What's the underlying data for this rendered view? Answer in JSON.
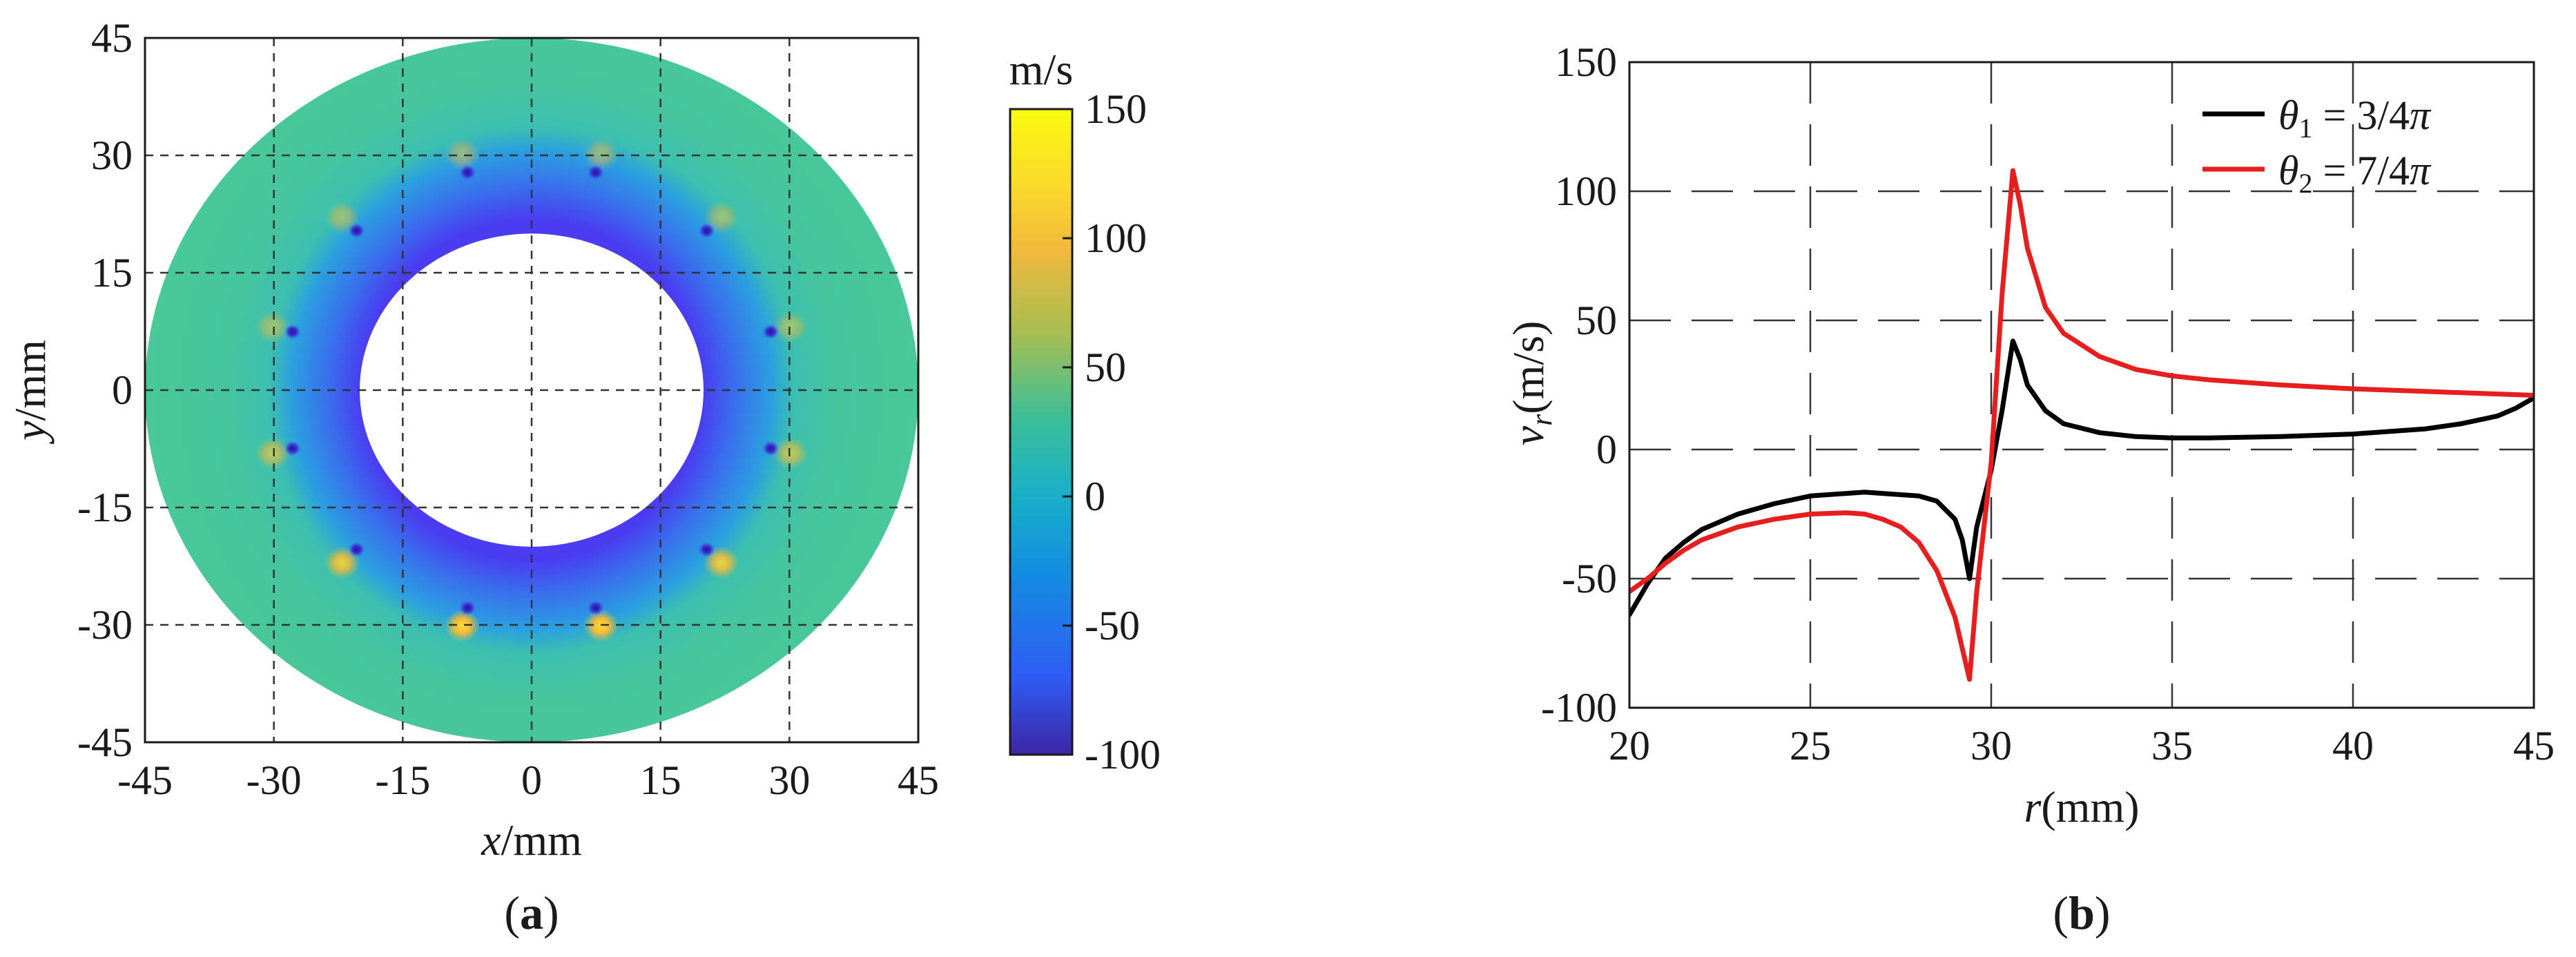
{
  "figure": {
    "panel_a_label": "(a)",
    "panel_b_label": "(b)"
  },
  "chart_data": [
    {
      "type": "heatmap",
      "panel": "a",
      "xlabel": "x/mm",
      "ylabel": "y/mm",
      "xlim": [
        -45,
        45
      ],
      "ylim": [
        -45,
        45
      ],
      "xticks": [
        "-45",
        "-30",
        "-15",
        "0",
        "15",
        "30",
        "45"
      ],
      "yticks": [
        "-45",
        "-30",
        "-15",
        "0",
        "15",
        "30",
        "45"
      ],
      "grid": true,
      "colorbar": {
        "unit": "m/s",
        "range": [
          -100,
          150
        ],
        "ticks": [
          "150",
          "100",
          "50",
          "0",
          "-50",
          "-100"
        ],
        "colormap": [
          "#3e26a8",
          "#2f5cf3",
          "#138de1",
          "#19afc9",
          "#3abe99",
          "#a4be52",
          "#f0b93c",
          "#fbd92b",
          "#f9fb0e"
        ]
      },
      "annulus": {
        "inner_radius": 20,
        "outer_radius": 45,
        "magnet_ring_radius": 30
      },
      "hotspot_angles_deg": [
        15,
        45,
        75,
        105,
        135,
        165,
        195,
        225,
        255,
        285,
        315,
        345
      ],
      "field_colors": {
        "outer": "#49c79a",
        "inner": "#3a58ec",
        "hot": "#f6c531",
        "cold": "#2b1e9a"
      }
    },
    {
      "type": "line",
      "panel": "b",
      "xlabel": "r(mm)",
      "ylabel": "v_r (m/s)",
      "xlim": [
        20,
        45
      ],
      "ylim": [
        -100,
        150
      ],
      "xticks": [
        "20",
        "25",
        "30",
        "35",
        "40",
        "45"
      ],
      "yticks": [
        "150",
        "100",
        "50",
        "0",
        "-50",
        "-100"
      ],
      "grid": true,
      "legend_position": "top-right",
      "series": [
        {
          "name": "θ1 = 3/4π",
          "color": "#000000",
          "x": [
            20,
            20.5,
            21,
            21.5,
            22,
            23,
            24,
            25,
            26,
            26.5,
            27,
            28,
            28.5,
            29,
            29.2,
            29.4,
            29.6,
            30,
            30.3,
            30.6,
            30.8,
            31,
            31.5,
            32,
            33,
            34,
            35,
            36,
            38,
            40,
            42,
            43,
            44,
            44.5,
            45
          ],
          "y": [
            -64,
            -52,
            -42,
            -36,
            -31,
            -25,
            -21,
            -18,
            -17,
            -16.5,
            -17,
            -18,
            -20,
            -27,
            -35,
            -50,
            -30,
            -8,
            15,
            42,
            35,
            25,
            15,
            10,
            6.5,
            5,
            4.5,
            4.5,
            5,
            6,
            8,
            10,
            13,
            16,
            20
          ]
        },
        {
          "name": "θ2 = 7/4π",
          "color": "#e61e1e",
          "x": [
            20,
            20.5,
            21,
            21.5,
            22,
            23,
            24,
            25,
            26,
            26.5,
            27,
            27.5,
            28,
            28.5,
            29,
            29.4,
            29.6,
            30,
            30.3,
            30.6,
            30.8,
            31,
            31.5,
            32,
            33,
            34,
            35,
            36,
            38,
            40,
            42,
            44,
            45
          ],
          "y": [
            -55,
            -50,
            -44,
            -39,
            -35,
            -30,
            -27,
            -25,
            -24.5,
            -25,
            -27,
            -30,
            -36,
            -47,
            -65,
            -89,
            -55,
            -5,
            60,
            108,
            95,
            78,
            55,
            45,
            36,
            31,
            28.5,
            27,
            25,
            23.5,
            22.5,
            21.5,
            21
          ]
        }
      ]
    }
  ]
}
